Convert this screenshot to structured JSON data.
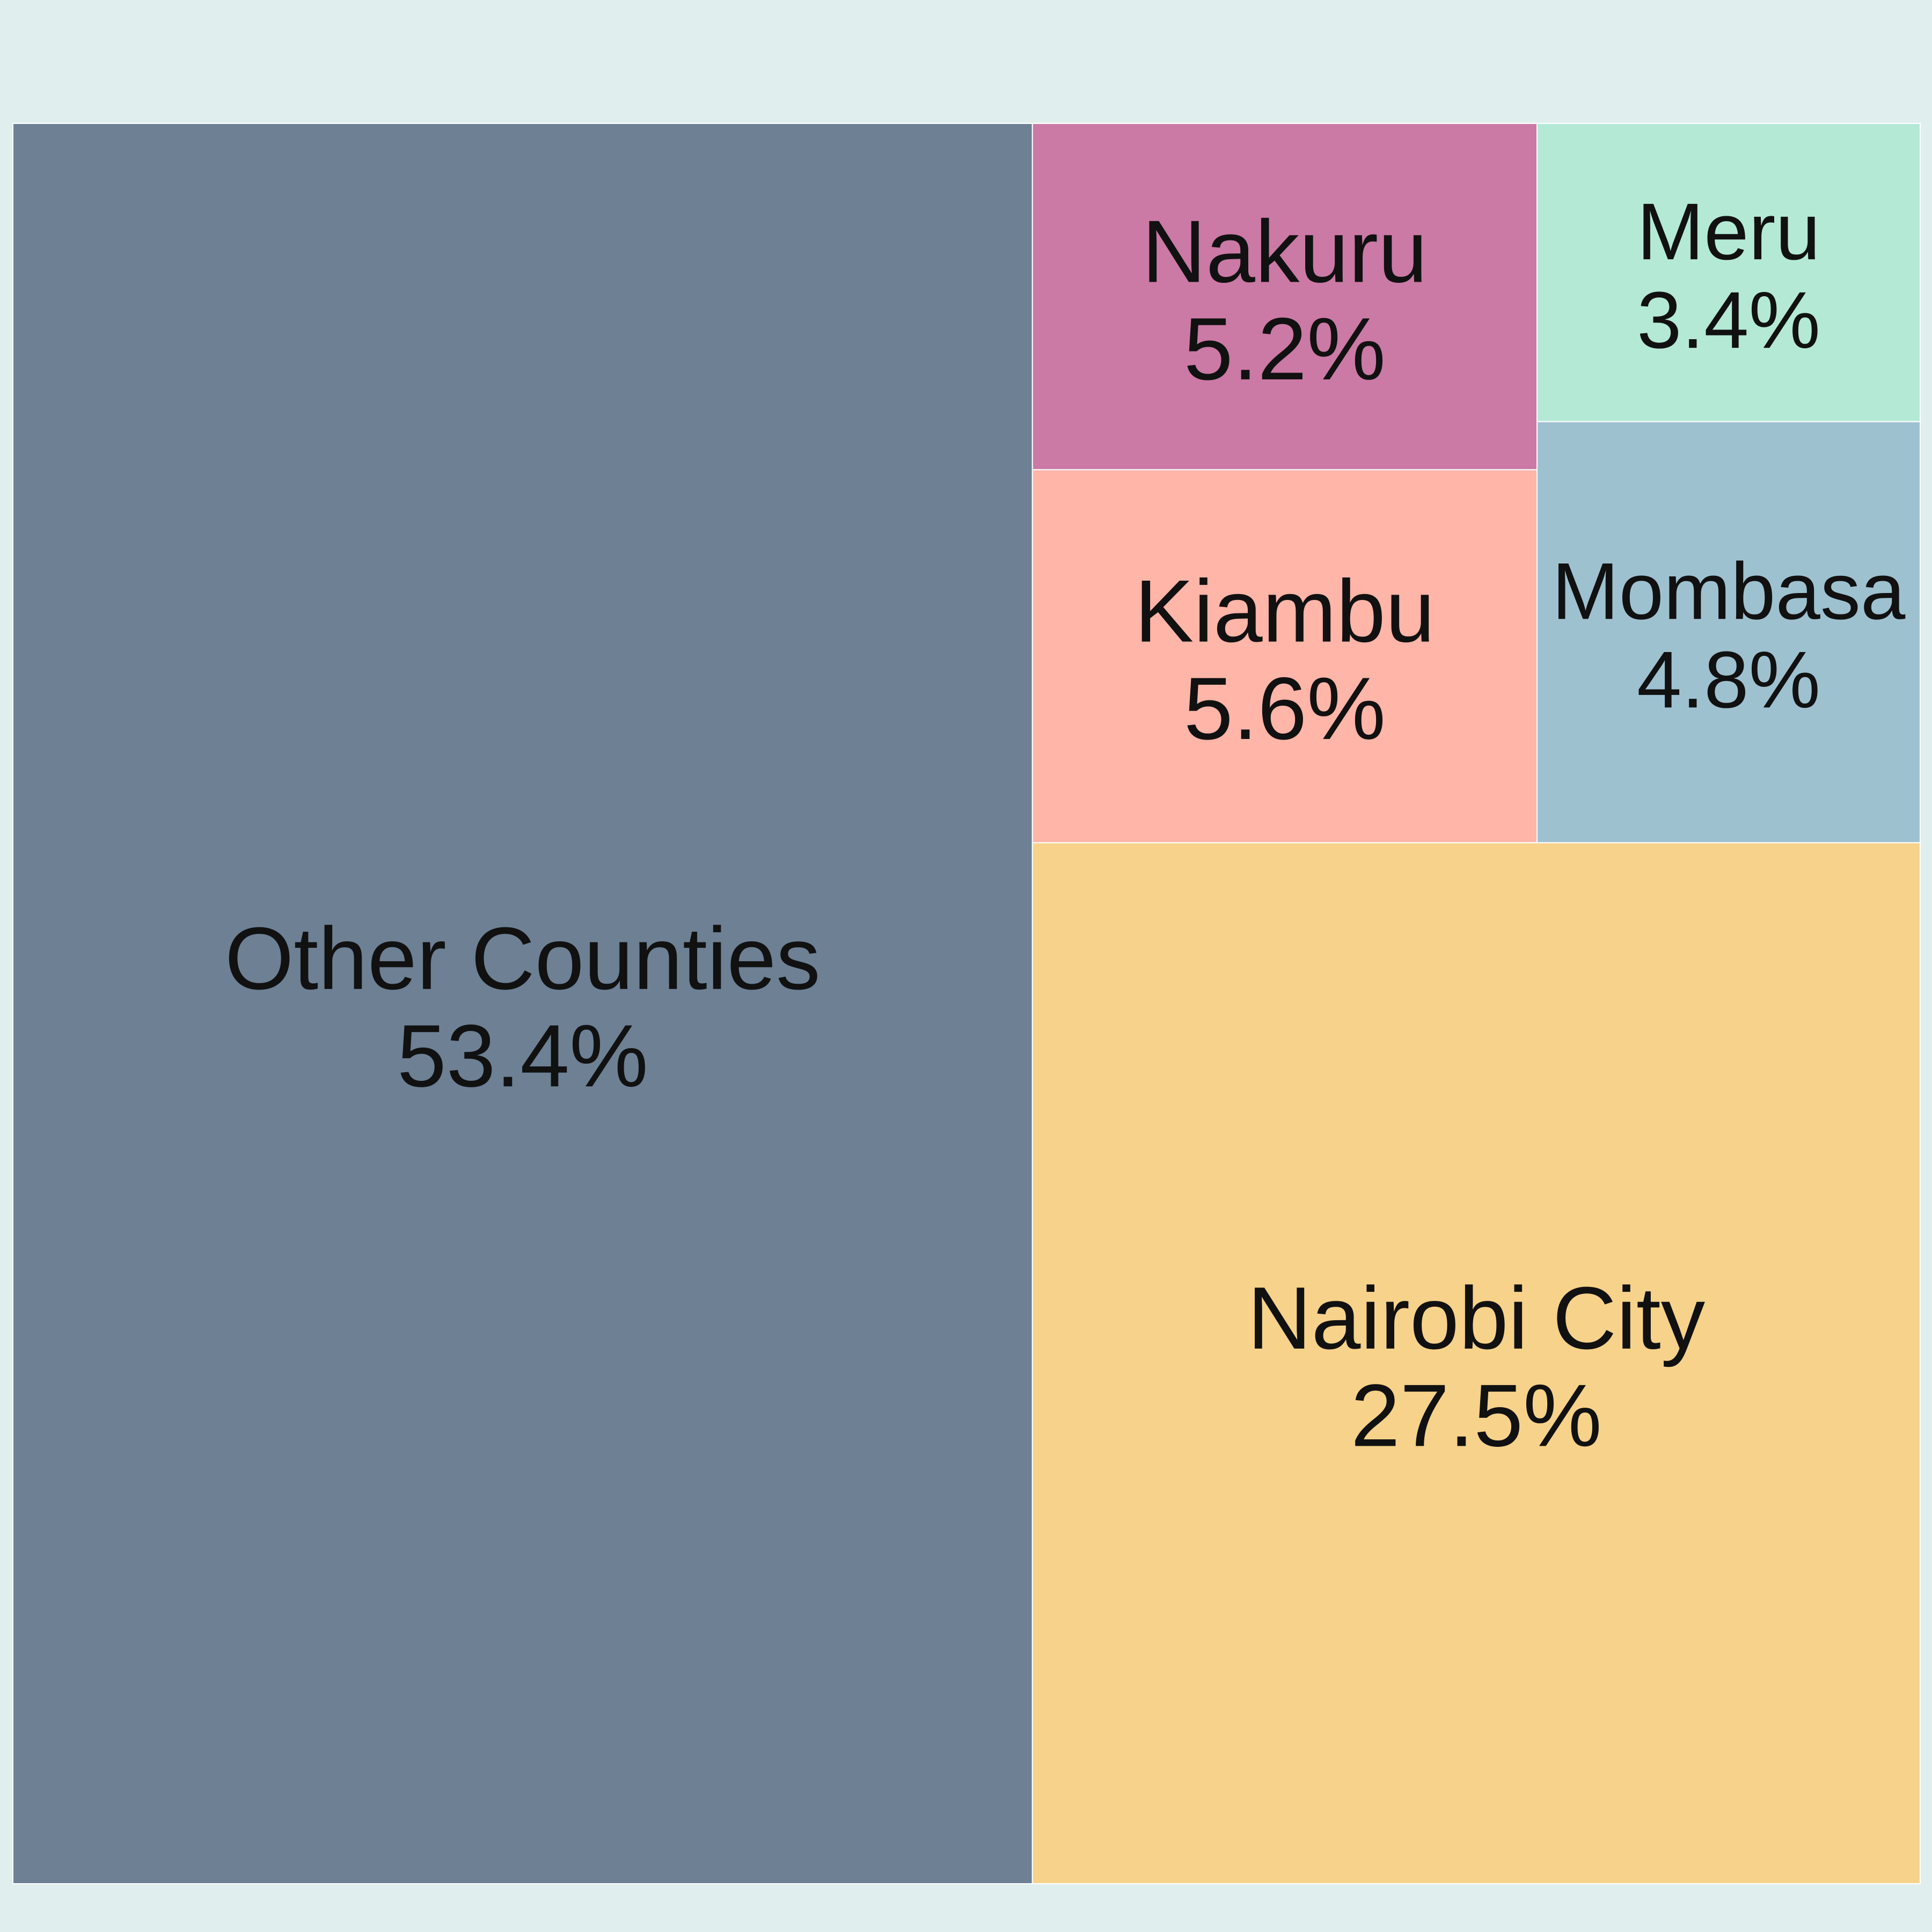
{
  "chart_data": {
    "type": "treemap",
    "title": "",
    "items": [
      {
        "label": "Other Counties",
        "value": 53.4,
        "value_label": "53.4%",
        "color": "#6d8094"
      },
      {
        "label": "Nairobi City",
        "value": 27.5,
        "value_label": "27.5%",
        "color": "#f6d28a"
      },
      {
        "label": "Kiambu",
        "value": 5.6,
        "value_label": "5.6%",
        "color": "#ffb5a8"
      },
      {
        "label": "Nakuru",
        "value": 5.2,
        "value_label": "5.2%",
        "color": "#cb79a5"
      },
      {
        "label": "Mombasa",
        "value": 4.8,
        "value_label": "4.8%",
        "color": "#9ec1d0"
      },
      {
        "label": "Meru",
        "value": 3.4,
        "value_label": "3.4%",
        "color": "#b4e9d6"
      }
    ],
    "background_color": "#e0efee"
  }
}
